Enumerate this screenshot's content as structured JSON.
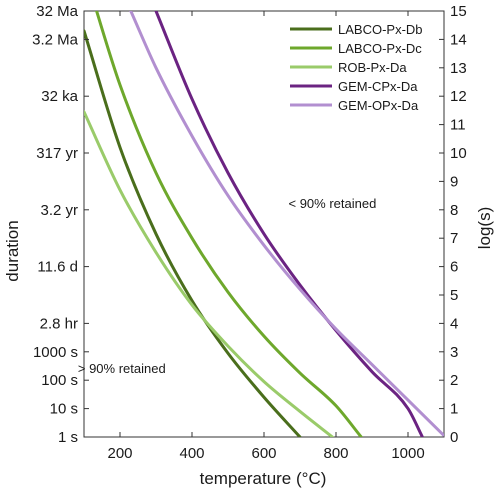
{
  "chart_data": {
    "type": "line",
    "title": "",
    "xlabel": "temperature (°C)",
    "ylabel_left": "duration",
    "ylabel_right": "log(s)",
    "xlim": [
      100,
      1100
    ],
    "ylim": [
      0,
      15
    ],
    "x_ticks": [
      200,
      400,
      600,
      800,
      1000
    ],
    "x_tick_labels": [
      "200",
      "400",
      "600",
      "800",
      "1000"
    ],
    "y_right_ticks": [
      0,
      1,
      2,
      3,
      4,
      5,
      6,
      7,
      8,
      9,
      10,
      11,
      12,
      13,
      14,
      15
    ],
    "y_right_tick_labels": [
      "0",
      "1",
      "2",
      "3",
      "4",
      "5",
      "6",
      "7",
      "8",
      "9",
      "10",
      "11",
      "12",
      "13",
      "14",
      "15"
    ],
    "y_left_ticks": [
      {
        "value": 0,
        "label": "1 s"
      },
      {
        "value": 1,
        "label": "10 s"
      },
      {
        "value": 2,
        "label": "100 s"
      },
      {
        "value": 3,
        "label": "1000 s"
      },
      {
        "value": 4,
        "label": "2.8 hr"
      },
      {
        "value": 6,
        "label": "11.6 d"
      },
      {
        "value": 8,
        "label": "3.2 yr"
      },
      {
        "value": 10,
        "label": "317 yr"
      },
      {
        "value": 12,
        "label": "32 ka"
      },
      {
        "value": 14,
        "label": "3.2 Ma"
      },
      {
        "value": 15,
        "label": "32 Ma"
      }
    ],
    "grid": false,
    "legend_position": "top-right",
    "series": [
      {
        "name": "LABCO-Px-Db",
        "color": "#4a6e1c",
        "x": [
          100,
          200,
          300,
          400,
          500,
          600,
          700
        ],
        "y": [
          14.3,
          10.2,
          7.15,
          4.8,
          2.95,
          1.4,
          0.0
        ]
      },
      {
        "name": "LABCO-Px-Dc",
        "color": "#6ea82c",
        "x": [
          100,
          135,
          200,
          300,
          400,
          500,
          600,
          700,
          800,
          870
        ],
        "y": [
          16.5,
          15.0,
          12.4,
          9.3,
          7.0,
          5.1,
          3.55,
          2.25,
          1.1,
          0.0
        ]
      },
      {
        "name": "ROB-Px-Da",
        "color": "#9acb6a",
        "x": [
          100,
          200,
          300,
          400,
          500,
          600,
          700,
          790
        ],
        "y": [
          11.45,
          8.7,
          6.5,
          4.65,
          3.2,
          1.95,
          0.9,
          0.0
        ]
      },
      {
        "name": "GEM-CPx-Da",
        "color": "#6b2382",
        "x": [
          300,
          400,
          500,
          600,
          700,
          800,
          900,
          1000,
          1040
        ],
        "y": [
          15.0,
          11.9,
          9.3,
          7.15,
          5.35,
          3.75,
          2.3,
          1.0,
          0.0
        ]
      },
      {
        "name": "GEM-OPx-Da",
        "color": "#b28fd0",
        "x": [
          230,
          300,
          400,
          500,
          600,
          700,
          800,
          900,
          1000,
          1100
        ],
        "y": [
          15.0,
          13.0,
          10.6,
          8.5,
          6.75,
          5.2,
          3.8,
          2.55,
          1.3,
          0.05
        ]
      }
    ],
    "annotations": [
      {
        "text": "< 90% retained",
        "x": 790,
        "y": 8.2
      },
      {
        "text": "> 90% retained",
        "x": 205,
        "y": 2.4
      }
    ]
  }
}
